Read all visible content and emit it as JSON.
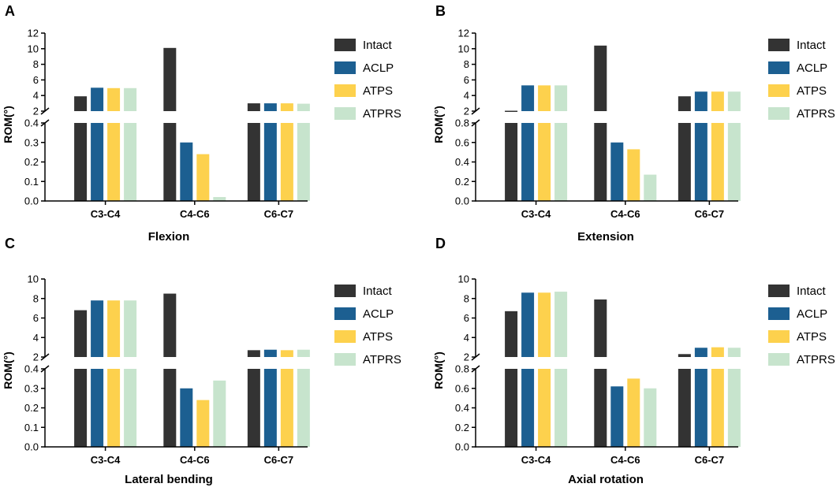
{
  "colors": {
    "Intact": "#333333",
    "ACLP": "#1c5f91",
    "ATPS": "#fdd14d",
    "ATPRS": "#c7e4cd",
    "axis": "#000000"
  },
  "chart_data": [
    {
      "panel_letter": "A",
      "type": "bar",
      "broken_axis": true,
      "title": "Flexion",
      "ylabel": "ROM(°)",
      "categories": [
        "C3-C4",
        "C4-C6",
        "C6-C7"
      ],
      "series": [
        {
          "name": "Intact",
          "values": [
            3.9,
            10.1,
            3.0
          ]
        },
        {
          "name": "ACLP",
          "values": [
            5.0,
            0.3,
            3.0
          ]
        },
        {
          "name": "ATPS",
          "values": [
            4.95,
            0.24,
            3.0
          ]
        },
        {
          "name": "ATPRS",
          "values": [
            4.95,
            0.02,
            2.95
          ]
        }
      ],
      "lower_ylim": [
        0,
        0.4
      ],
      "lower_ticks": [
        0.0,
        0.1,
        0.2,
        0.3,
        0.4
      ],
      "lower_tick_labels": [
        "0.0",
        "0.1",
        "0.2",
        "0.3",
        "0.4"
      ],
      "upper_ylim": [
        2,
        12
      ],
      "upper_ticks": [
        2,
        4,
        6,
        8,
        10,
        12
      ],
      "upper_tick_labels": [
        "2",
        "4",
        "6",
        "8",
        "10",
        "12"
      ],
      "legend": [
        "Intact",
        "ACLP",
        "ATPS",
        "ATPRS"
      ],
      "legend_position": "right"
    },
    {
      "panel_letter": "B",
      "type": "bar",
      "broken_axis": true,
      "title": "Extension",
      "ylabel": "ROM(°)",
      "categories": [
        "C3-C4",
        "C4-C6",
        "C6-C7"
      ],
      "series": [
        {
          "name": "Intact",
          "values": [
            2.05,
            10.4,
            3.9
          ]
        },
        {
          "name": "ACLP",
          "values": [
            5.3,
            0.6,
            4.5
          ]
        },
        {
          "name": "ATPS",
          "values": [
            5.3,
            0.53,
            4.5
          ]
        },
        {
          "name": "ATPRS",
          "values": [
            5.3,
            0.27,
            4.5
          ]
        }
      ],
      "lower_ylim": [
        0,
        0.8
      ],
      "lower_ticks": [
        0.0,
        0.2,
        0.4,
        0.6,
        0.8
      ],
      "lower_tick_labels": [
        "0.0",
        "0.2",
        "0.4",
        "0.6",
        "0.8"
      ],
      "upper_ylim": [
        2,
        12
      ],
      "upper_ticks": [
        2,
        4,
        6,
        8,
        10,
        12
      ],
      "upper_tick_labels": [
        "2",
        "4",
        "6",
        "8",
        "10",
        "12"
      ],
      "legend": [
        "Intact",
        "ACLP",
        "ATPS",
        "ATPRS"
      ],
      "legend_position": "right"
    },
    {
      "panel_letter": "C",
      "type": "bar",
      "broken_axis": true,
      "title": "Lateral bending",
      "ylabel": "ROM(°)",
      "categories": [
        "C3-C4",
        "C4-C6",
        "C6-C7"
      ],
      "series": [
        {
          "name": "Intact",
          "values": [
            6.8,
            8.5,
            2.7
          ]
        },
        {
          "name": "ACLP",
          "values": [
            7.8,
            0.3,
            2.75
          ]
        },
        {
          "name": "ATPS",
          "values": [
            7.8,
            0.24,
            2.7
          ]
        },
        {
          "name": "ATPRS",
          "values": [
            7.8,
            0.34,
            2.75
          ]
        }
      ],
      "lower_ylim": [
        0,
        0.4
      ],
      "lower_ticks": [
        0.0,
        0.1,
        0.2,
        0.3,
        0.4
      ],
      "lower_tick_labels": [
        "0.0",
        "0.1",
        "0.2",
        "0.3",
        "0.4"
      ],
      "upper_ylim": [
        2,
        10
      ],
      "upper_ticks": [
        2,
        4,
        6,
        8,
        10
      ],
      "upper_tick_labels": [
        "2",
        "4",
        "6",
        "8",
        "10"
      ],
      "legend": [
        "Intact",
        "ACLP",
        "ATPS",
        "ATPRS"
      ],
      "legend_position": "right"
    },
    {
      "panel_letter": "D",
      "type": "bar",
      "broken_axis": true,
      "title": "Axial rotation",
      "ylabel": "ROM(°)",
      "categories": [
        "C3-C4",
        "C4-C6",
        "C6-C7"
      ],
      "series": [
        {
          "name": "Intact",
          "values": [
            6.7,
            7.9,
            2.3
          ]
        },
        {
          "name": "ACLP",
          "values": [
            8.6,
            0.62,
            2.95
          ]
        },
        {
          "name": "ATPS",
          "values": [
            8.6,
            0.7,
            3.0
          ]
        },
        {
          "name": "ATPRS",
          "values": [
            8.7,
            0.6,
            2.95
          ]
        }
      ],
      "lower_ylim": [
        0,
        0.8
      ],
      "lower_ticks": [
        0.0,
        0.2,
        0.4,
        0.6,
        0.8
      ],
      "lower_tick_labels": [
        "0.0",
        "0.2",
        "0.4",
        "0.6",
        "0.8"
      ],
      "upper_ylim": [
        2,
        10
      ],
      "upper_ticks": [
        2,
        4,
        6,
        8,
        10
      ],
      "upper_tick_labels": [
        "2",
        "4",
        "6",
        "8",
        "10"
      ],
      "legend": [
        "Intact",
        "ACLP",
        "ATPS",
        "ATPRS"
      ],
      "legend_position": "right"
    }
  ]
}
